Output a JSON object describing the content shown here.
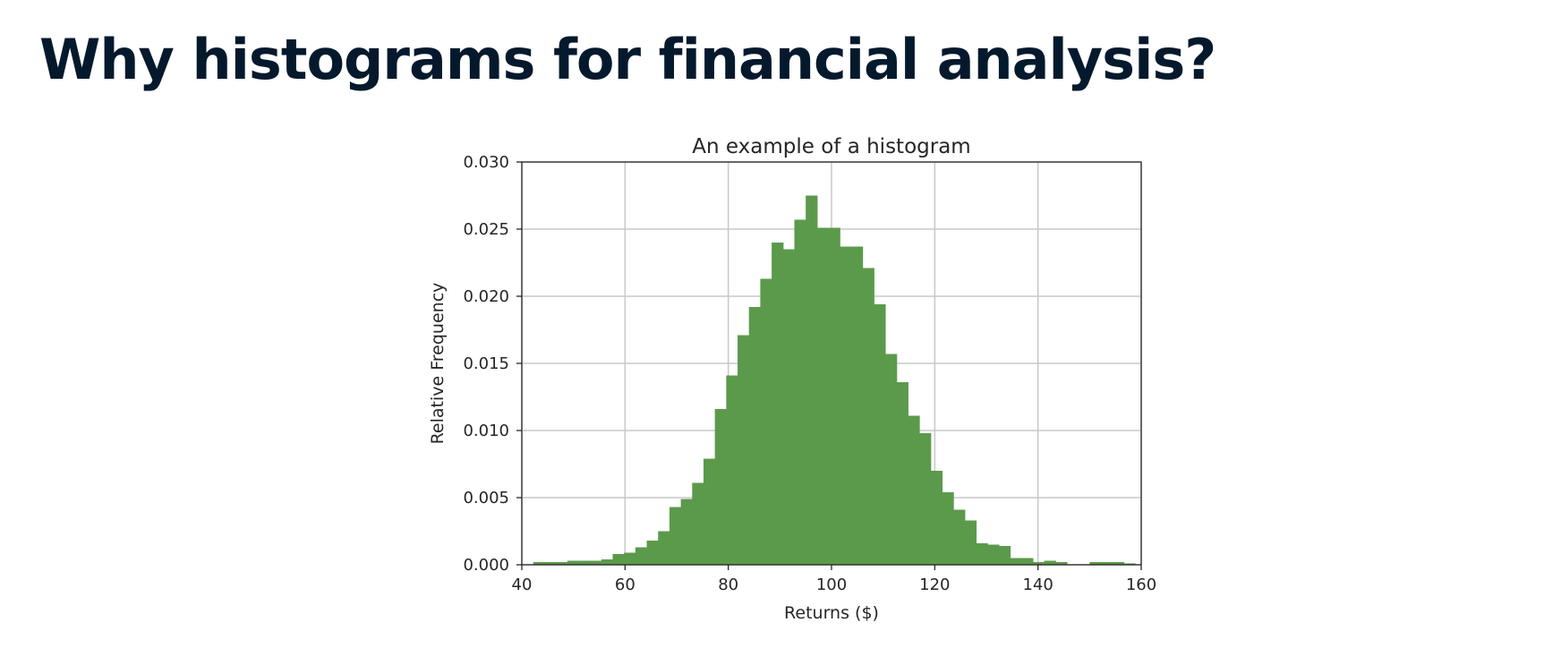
{
  "slide": {
    "title": "Why histograms for financial analysis?"
  },
  "chart_data": {
    "type": "bar",
    "title": "An example of a histogram",
    "xlabel": "Returns ($)",
    "ylabel": "Relative Frequency",
    "xlim": [
      40,
      160
    ],
    "ylim": [
      0,
      0.03
    ],
    "x_ticks": [
      "40",
      "60",
      "80",
      "100",
      "120",
      "140",
      "160"
    ],
    "y_ticks": [
      "0.000",
      "0.005",
      "0.010",
      "0.015",
      "0.020",
      "0.025",
      "0.030"
    ],
    "grid": true,
    "bar_color": "#5b9a4b",
    "bin_start": 40,
    "bin_width": 2.2,
    "values": [
      0.0,
      0.0002,
      0.0002,
      0.0002,
      0.0003,
      0.0003,
      0.0003,
      0.0004,
      0.0008,
      0.0009,
      0.0013,
      0.0018,
      0.0025,
      0.0043,
      0.0049,
      0.0061,
      0.0079,
      0.0116,
      0.0141,
      0.0171,
      0.0192,
      0.0213,
      0.024,
      0.0235,
      0.0257,
      0.0275,
      0.0251,
      0.0251,
      0.0237,
      0.0237,
      0.0221,
      0.0194,
      0.0157,
      0.0136,
      0.0111,
      0.0098,
      0.007,
      0.0054,
      0.0041,
      0.0033,
      0.0016,
      0.0015,
      0.0014,
      0.0005,
      0.0005,
      0.0002,
      0.0003,
      0.0002,
      0.0,
      0.0,
      0.0002,
      0.0002,
      0.0002,
      0.0001,
      0.0
    ]
  }
}
